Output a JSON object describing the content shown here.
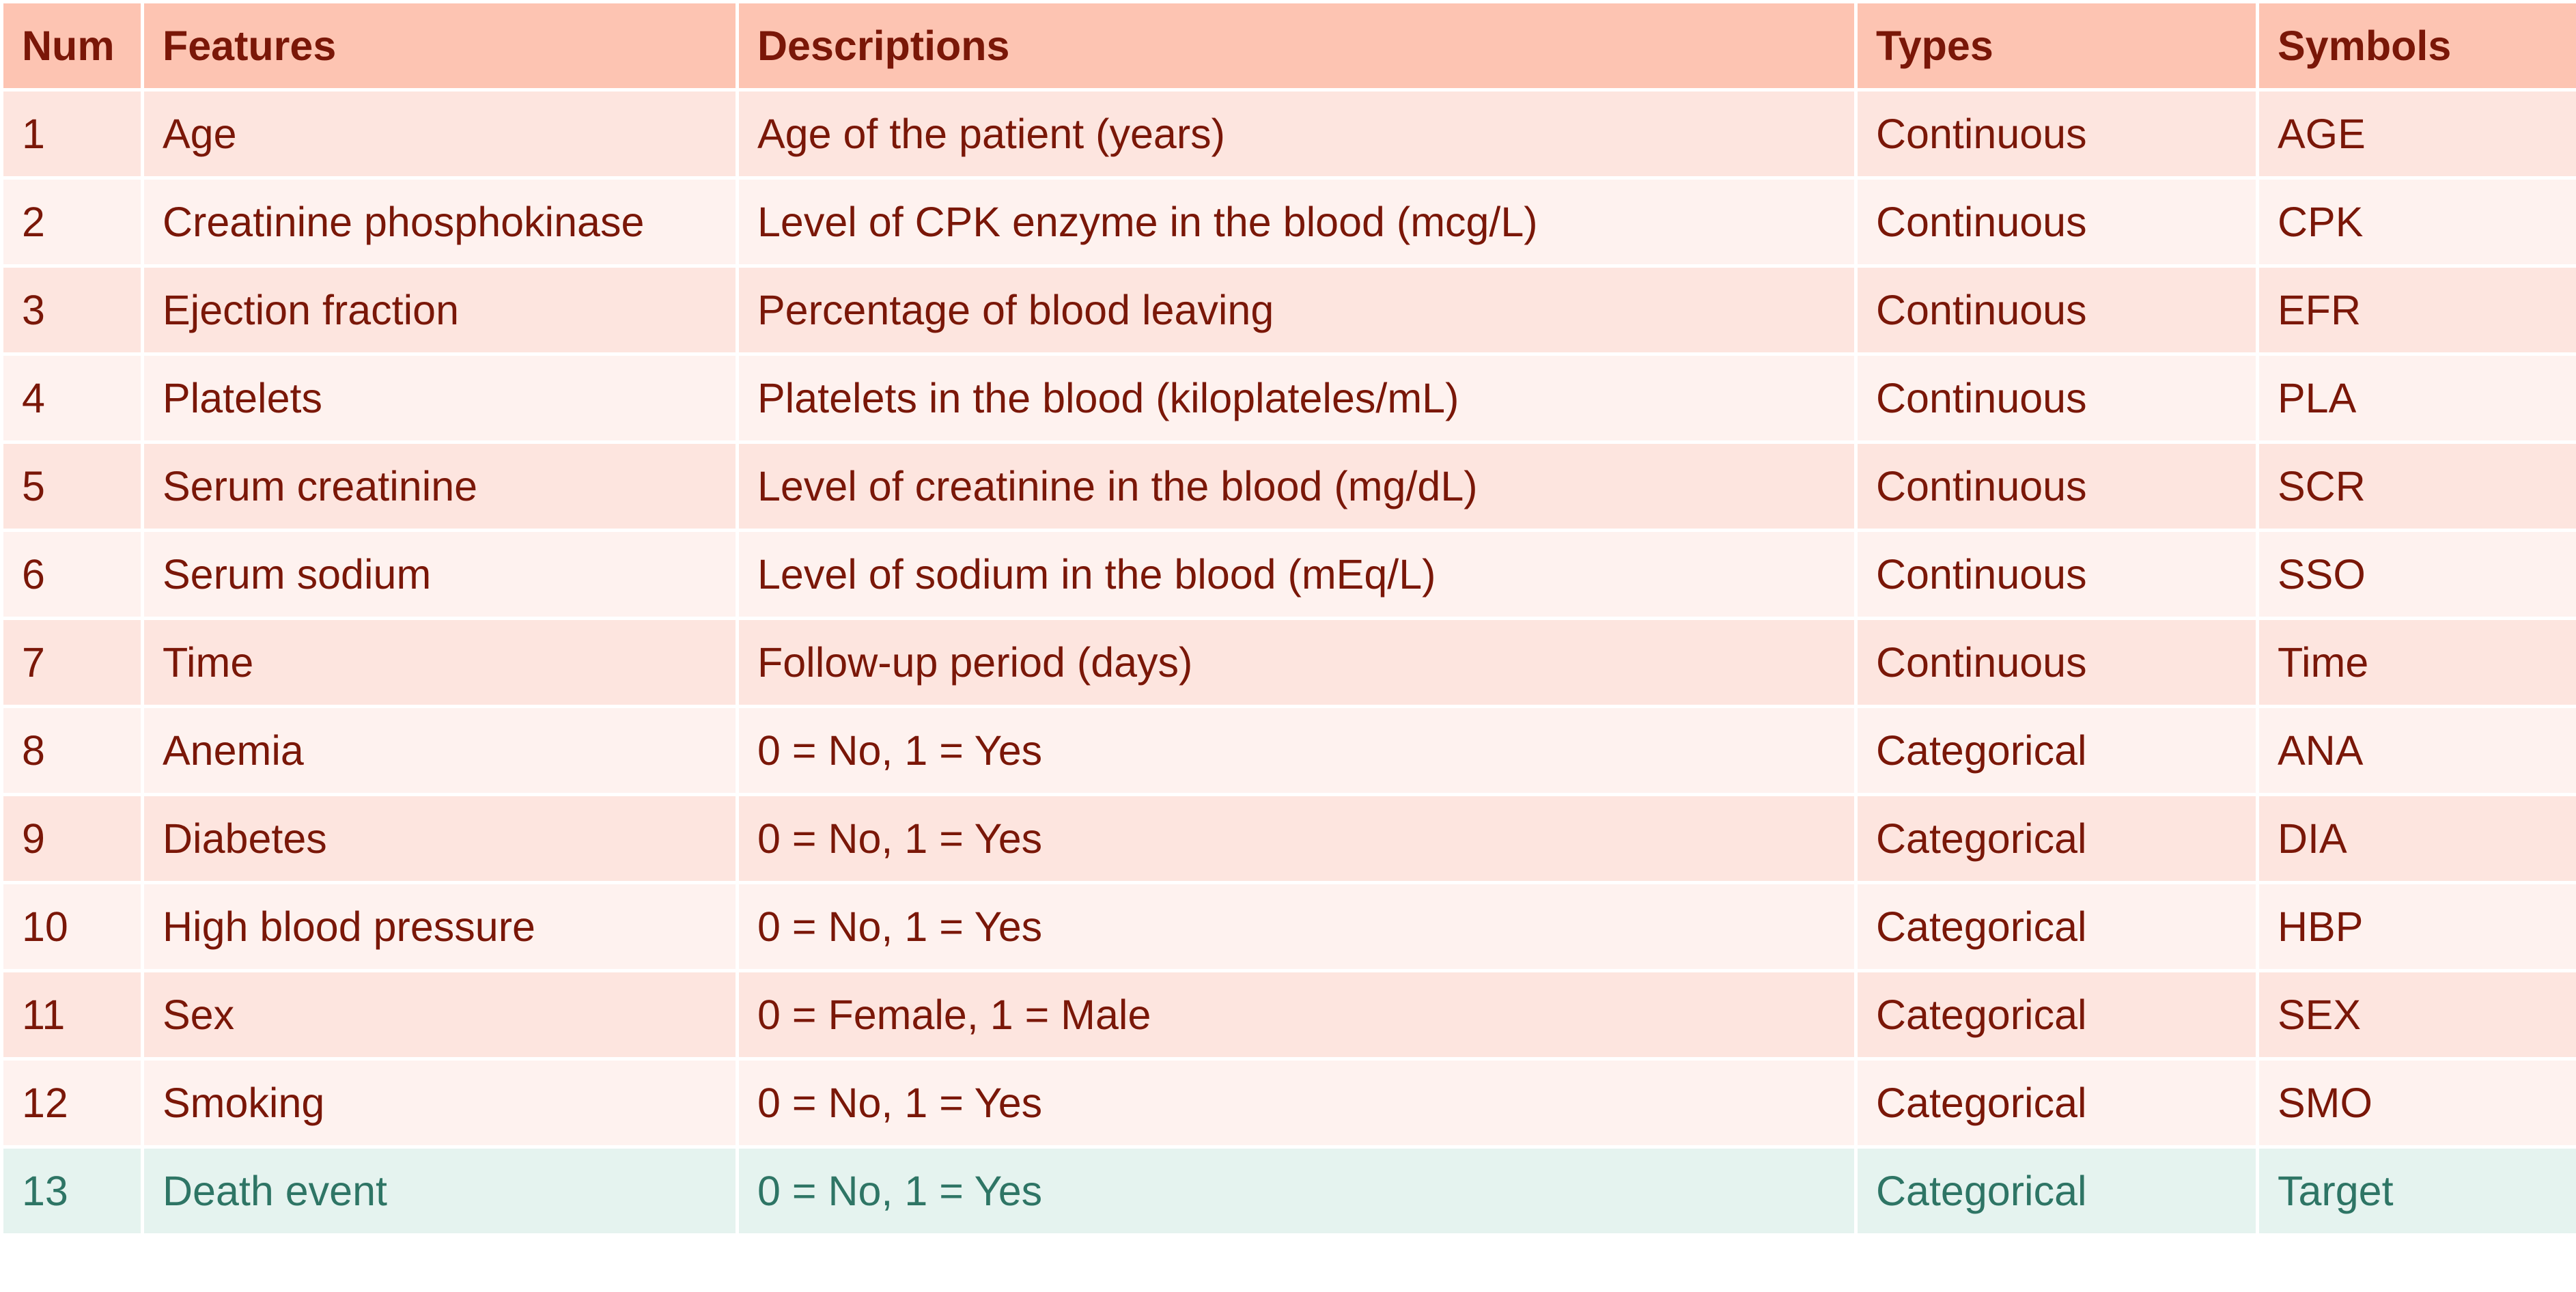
{
  "colors": {
    "header_bg": "#fdc4b2",
    "row_bg_odd": "#fde5df",
    "row_bg_even": "#fef2ef",
    "target_row_bg": "#e5f3ef",
    "text_primary": "#7a1708",
    "text_target": "#2e7565"
  },
  "table": {
    "headers": [
      "Num",
      "Features",
      "Descriptions",
      "Types",
      "Symbols"
    ],
    "rows": [
      [
        "1",
        "Age",
        "Age of the patient (years)",
        "Continuous",
        "AGE"
      ],
      [
        "2",
        "Creatinine phosphokinase",
        "Level of CPK enzyme in the blood (mcg/L)",
        "Continuous",
        "CPK"
      ],
      [
        "3",
        "Ejection fraction",
        "Percentage of blood leaving",
        "Continuous",
        "EFR"
      ],
      [
        "4",
        "Platelets",
        "Platelets in the blood (kiloplateles/mL)",
        "Continuous",
        "PLA"
      ],
      [
        "5",
        "Serum creatinine",
        "Level of creatinine in the blood (mg/dL)",
        "Continuous",
        "SCR"
      ],
      [
        "6",
        "Serum sodium",
        "Level of sodium in the blood (mEq/L)",
        "Continuous",
        "SSO"
      ],
      [
        "7",
        "Time",
        "Follow-up period (days)",
        "Continuous",
        "Time"
      ],
      [
        "8",
        "Anemia",
        "0 = No, 1 = Yes",
        "Categorical",
        "ANA"
      ],
      [
        "9",
        "Diabetes",
        "0 = No, 1 = Yes",
        "Categorical",
        "DIA"
      ],
      [
        "10",
        "High blood pressure",
        "0 = No, 1 = Yes",
        "Categorical",
        "HBP"
      ],
      [
        "11",
        "Sex",
        "0 = Female, 1 = Male",
        "Categorical",
        "SEX"
      ],
      [
        "12",
        "Smoking",
        "0 = No, 1 = Yes",
        "Categorical",
        "SMO"
      ],
      [
        "13",
        "Death event",
        "0 = No, 1 = Yes",
        "Categorical",
        "Target"
      ]
    ]
  }
}
